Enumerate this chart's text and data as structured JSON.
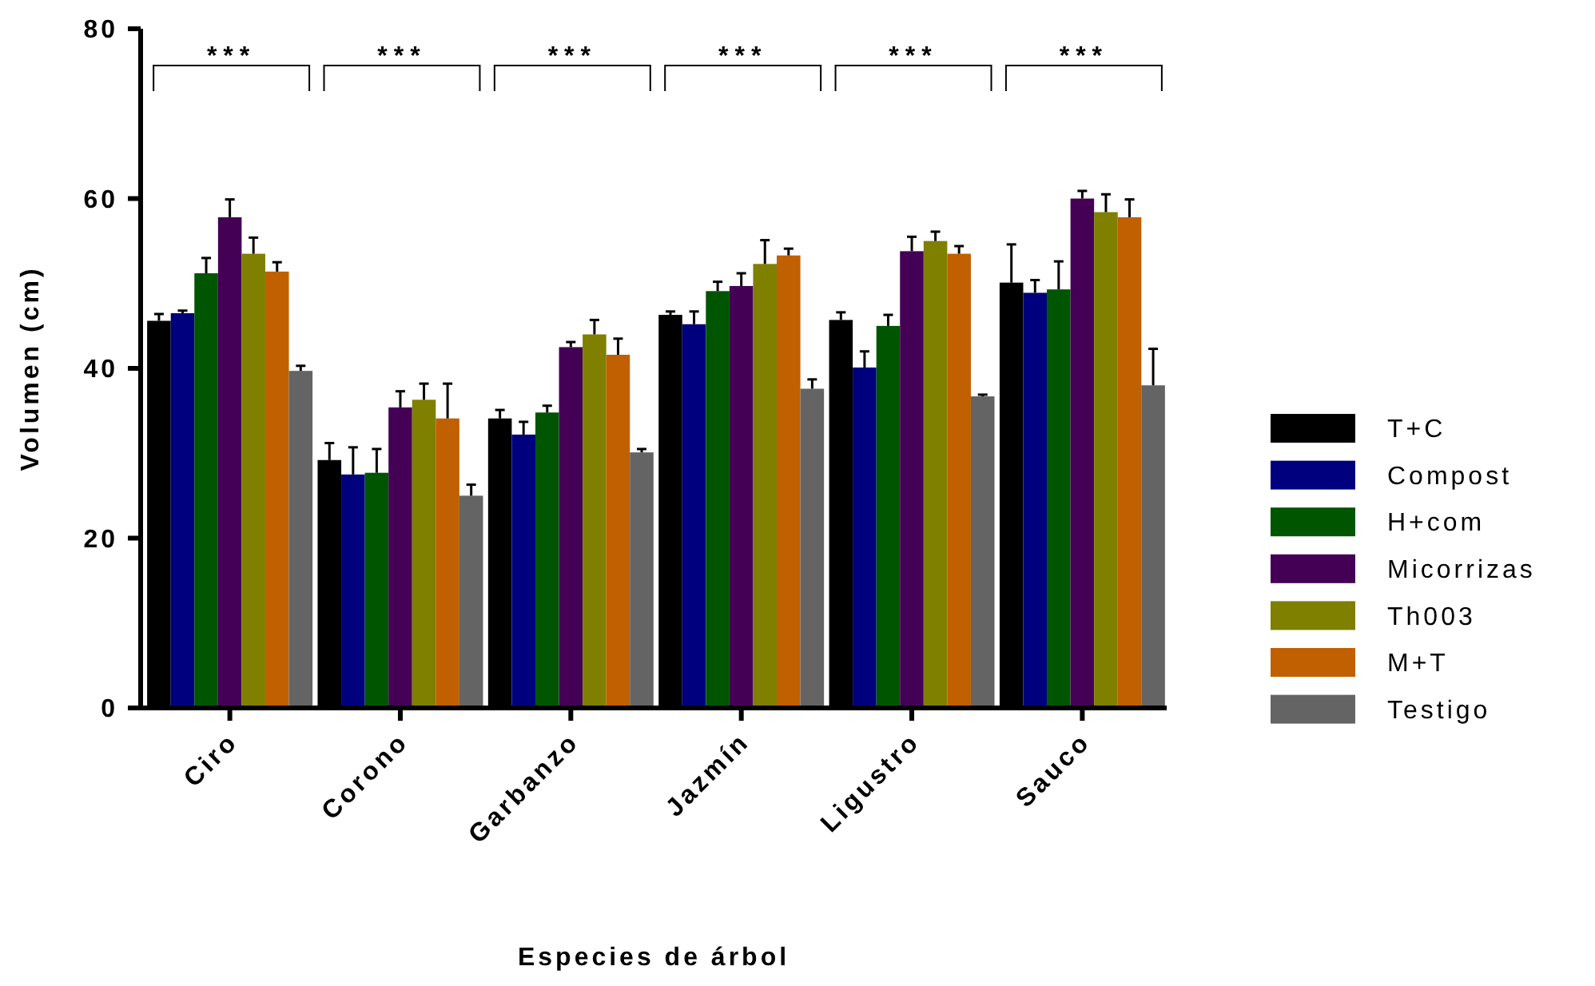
{
  "chart_data": {
    "type": "bar",
    "xlabel": "Especies de árbol",
    "ylabel": "Volumen (cm)",
    "categories": [
      "Ciro",
      "Corono",
      "Garbanzo",
      "Jazmín",
      "Ligustro",
      "Sauco"
    ],
    "series": [
      {
        "name": "T+C",
        "color": "#000000",
        "values": [
          45.6,
          29.2,
          34.1,
          46.3,
          45.7,
          50.1
        ],
        "errors": [
          [
            45.6,
            46.4
          ],
          [
            29.2,
            31.2
          ],
          [
            34.1,
            35.1
          ],
          [
            46.3,
            46.7
          ],
          [
            45.7,
            46.6
          ],
          [
            50.1,
            54.6
          ]
        ]
      },
      {
        "name": "Compost",
        "color": "#00007f",
        "values": [
          46.5,
          27.5,
          32.2,
          45.2,
          40.1,
          48.9
        ],
        "errors": [
          [
            46.5,
            46.8
          ],
          [
            27.5,
            30.7
          ],
          [
            32.2,
            33.7
          ],
          [
            45.2,
            46.7
          ],
          [
            40.1,
            42.0
          ],
          [
            48.9,
            50.4
          ]
        ]
      },
      {
        "name": "H+com",
        "color": "#005500",
        "values": [
          51.2,
          27.7,
          34.8,
          49.1,
          45.0,
          49.3
        ],
        "errors": [
          [
            51.2,
            53.0
          ],
          [
            27.7,
            30.5
          ],
          [
            34.8,
            35.6
          ],
          [
            49.1,
            50.2
          ],
          [
            45.0,
            46.3
          ],
          [
            49.3,
            52.6
          ]
        ]
      },
      {
        "name": "Micorrizas",
        "color": "#440055",
        "values": [
          57.8,
          35.4,
          42.5,
          49.7,
          53.8,
          60.0
        ],
        "errors": [
          [
            57.8,
            59.9
          ],
          [
            35.4,
            37.3
          ],
          [
            42.5,
            43.1
          ],
          [
            49.7,
            51.2
          ],
          [
            53.8,
            55.5
          ],
          [
            60.0,
            60.9
          ]
        ]
      },
      {
        "name": "Th003",
        "color": "#7f7f00",
        "values": [
          53.5,
          36.3,
          44.0,
          52.3,
          55.0,
          58.4
        ],
        "errors": [
          [
            53.5,
            55.4
          ],
          [
            36.3,
            38.2
          ],
          [
            44.0,
            45.7
          ],
          [
            52.3,
            55.1
          ],
          [
            55.0,
            56.1
          ],
          [
            58.4,
            60.5
          ]
        ]
      },
      {
        "name": "M+T",
        "color": "#c06000",
        "values": [
          51.4,
          34.1,
          41.6,
          53.3,
          53.5,
          57.8
        ],
        "errors": [
          [
            51.4,
            52.5
          ],
          [
            34.1,
            38.2
          ],
          [
            41.6,
            43.5
          ],
          [
            53.3,
            54.1
          ],
          [
            53.5,
            54.4
          ],
          [
            57.8,
            59.9
          ]
        ]
      },
      {
        "name": "Testigo",
        "color": "#646464",
        "values": [
          39.7,
          25.0,
          30.1,
          37.6,
          36.7,
          38.0
        ],
        "errors": [
          [
            39.7,
            40.3
          ],
          [
            25.0,
            26.3
          ],
          [
            30.1,
            30.5
          ],
          [
            37.6,
            38.7
          ],
          [
            36.7,
            36.9
          ],
          [
            38.0,
            42.3
          ]
        ]
      }
    ],
    "ylim": [
      0,
      80
    ],
    "yticks": [
      0,
      20,
      40,
      60,
      80
    ],
    "legend": "right",
    "annotations": [
      "***",
      "***",
      "***",
      "***",
      "***",
      "***"
    ]
  }
}
